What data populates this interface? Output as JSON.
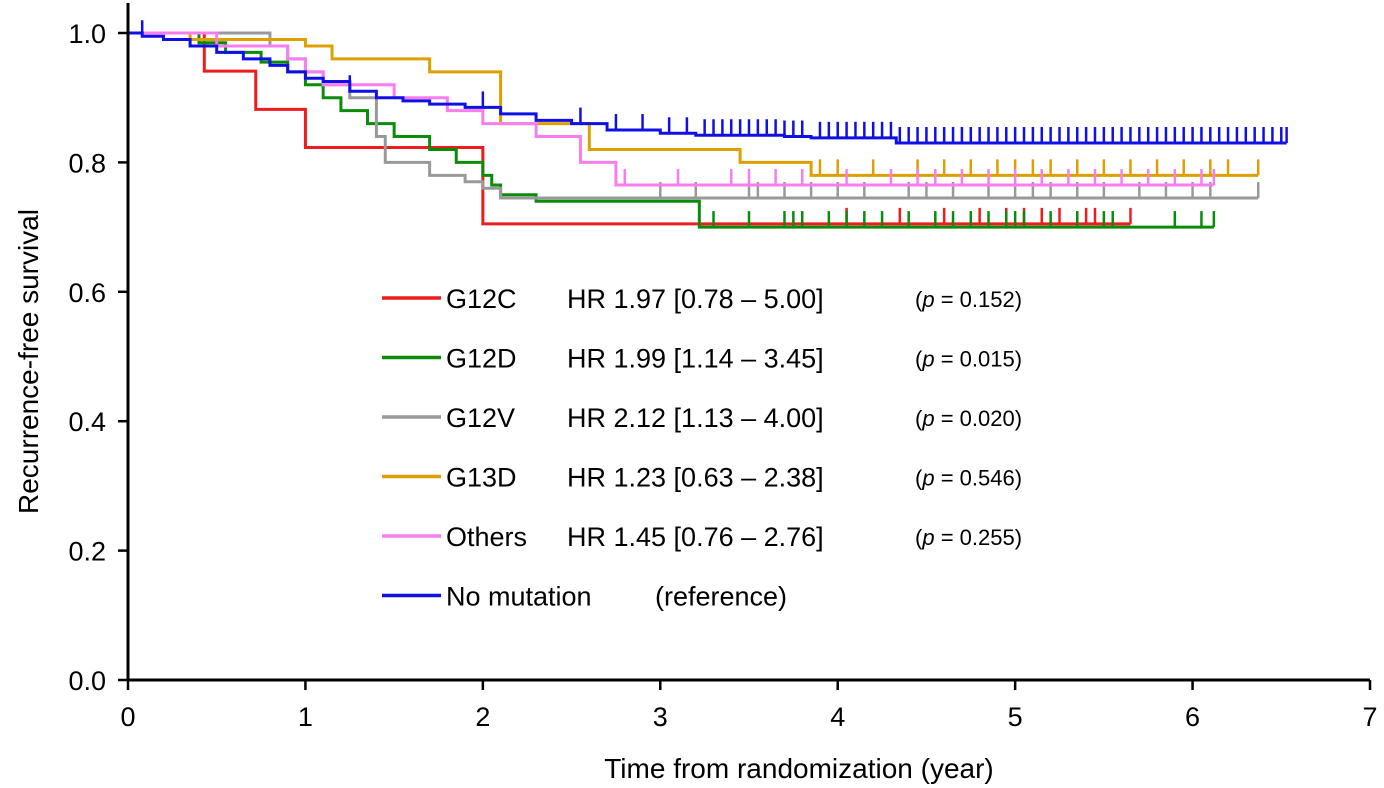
{
  "chart_data": {
    "type": "line",
    "step": true,
    "xlabel": "Time from randomization (year)",
    "ylabel": "Recurrence-free survival",
    "xlim": [
      0,
      7
    ],
    "ylim": [
      0.0,
      1.0
    ],
    "x_ticks": [
      "0",
      "1",
      "2",
      "3",
      "4",
      "5",
      "6",
      "7"
    ],
    "y_ticks": [
      "0.0",
      "0.2",
      "0.4",
      "0.6",
      "0.8",
      "1.0"
    ],
    "grid": false,
    "legend_position": "center",
    "series": [
      {
        "name": "G12C",
        "color": "#ee1c1c",
        "hr_text": "HR 1.97 [0.78 – 5.00]",
        "p_label": "p",
        "p_value": " = 0.152)",
        "x": [
          0,
          0.43,
          0.72,
          1.0,
          1.93,
          2.0,
          5.65
        ],
        "y": [
          1.0,
          0.941,
          0.882,
          0.823,
          0.823,
          0.705,
          0.705
        ],
        "censor_x": [
          4.05,
          4.35,
          4.6,
          4.8,
          4.95,
          5.05,
          5.15,
          5.25,
          5.4,
          5.45,
          5.65
        ]
      },
      {
        "name": "G12D",
        "color": "#0a8c0a",
        "hr_text": "HR 1.99 [1.14 – 3.45]",
        "p_label": "p",
        "p_value": " = 0.015)",
        "x": [
          0,
          0.4,
          0.55,
          0.75,
          0.9,
          1.0,
          1.1,
          1.2,
          1.35,
          1.5,
          1.7,
          1.85,
          2.0,
          2.05,
          2.1,
          2.3,
          3.22,
          6.12
        ],
        "y": [
          1.0,
          0.985,
          0.97,
          0.955,
          0.94,
          0.92,
          0.9,
          0.88,
          0.86,
          0.84,
          0.82,
          0.8,
          0.78,
          0.765,
          0.75,
          0.74,
          0.7,
          0.7
        ],
        "censor_x": [
          3.3,
          3.5,
          3.7,
          3.75,
          3.8,
          3.95,
          4.05,
          4.15,
          4.25,
          4.4,
          4.55,
          4.65,
          4.75,
          4.85,
          4.95,
          5.0,
          5.05,
          5.2,
          5.35,
          5.5,
          5.55,
          5.9,
          6.05,
          6.12
        ]
      },
      {
        "name": "G12V",
        "color": "#999999",
        "hr_text": "HR 2.12 [1.13 – 4.00]",
        "p_label": "p",
        "p_value": " = 0.020)",
        "x": [
          0,
          0.8,
          0.9,
          1.0,
          1.1,
          1.25,
          1.4,
          1.45,
          1.7,
          1.9,
          2.0,
          2.1,
          6.37
        ],
        "y": [
          1.0,
          0.98,
          0.96,
          0.94,
          0.92,
          0.9,
          0.84,
          0.8,
          0.78,
          0.77,
          0.76,
          0.745,
          0.745
        ],
        "censor_x": [
          3.0,
          3.2,
          3.5,
          3.55,
          3.7,
          3.85,
          4.0,
          4.15,
          4.4,
          4.5,
          4.65,
          4.85,
          5.0,
          5.1,
          5.2,
          5.35,
          5.5,
          5.7,
          5.85,
          6.0,
          6.1,
          6.37
        ]
      },
      {
        "name": "G13D",
        "color": "#dda000",
        "hr_text": "HR 1.23 [0.63 – 2.38]",
        "p_label": "p",
        "p_value": " = 0.546)",
        "x": [
          0,
          0.35,
          1.0,
          1.15,
          1.5,
          1.7,
          2.1,
          2.4,
          2.6,
          3.1,
          3.45,
          3.85,
          6.37
        ],
        "y": [
          1.0,
          0.99,
          0.98,
          0.96,
          0.96,
          0.94,
          0.86,
          0.86,
          0.82,
          0.82,
          0.8,
          0.78,
          0.78
        ],
        "censor_x": [
          3.9,
          4.0,
          4.2,
          4.45,
          4.6,
          4.75,
          4.9,
          5.0,
          5.1,
          5.2,
          5.35,
          5.5,
          5.65,
          5.8,
          5.95,
          6.1,
          6.2,
          6.37
        ]
      },
      {
        "name": "Others",
        "color": "#f87ef0",
        "hr_text": "HR 1.45 [0.76 – 2.76]",
        "p_label": "p",
        "p_value": " = 0.255)",
        "x": [
          0,
          0.5,
          0.9,
          1.0,
          1.1,
          1.5,
          1.8,
          2.0,
          2.3,
          2.55,
          2.75,
          6.12
        ],
        "y": [
          1.0,
          0.98,
          0.96,
          0.94,
          0.92,
          0.9,
          0.88,
          0.86,
          0.84,
          0.8,
          0.765,
          0.765
        ],
        "censor_x": [
          2.8,
          3.1,
          3.4,
          3.5,
          3.65,
          3.8,
          4.05,
          4.3,
          4.45,
          4.55,
          4.7,
          4.85,
          5.0,
          5.15,
          5.3,
          5.45,
          5.6,
          5.75,
          5.9,
          6.05,
          6.12
        ]
      },
      {
        "name": "No mutation",
        "color": "#1010e6",
        "hr_text": "(reference)",
        "p_label": "",
        "p_value": "",
        "x": [
          0,
          0.08,
          0.2,
          0.35,
          0.5,
          0.65,
          0.8,
          0.9,
          1.0,
          1.1,
          1.25,
          1.4,
          1.55,
          1.7,
          1.9,
          2.1,
          2.3,
          2.5,
          2.7,
          3.0,
          3.2,
          3.5,
          3.7,
          3.85,
          4.0,
          4.33,
          6.53
        ],
        "y": [
          1.0,
          0.995,
          0.99,
          0.98,
          0.97,
          0.96,
          0.95,
          0.94,
          0.93,
          0.925,
          0.91,
          0.9,
          0.895,
          0.89,
          0.885,
          0.875,
          0.865,
          0.86,
          0.85,
          0.845,
          0.842,
          0.842,
          0.84,
          0.838,
          0.838,
          0.83,
          0.83
        ],
        "censor_x": [
          0.08,
          1.25,
          2.0,
          2.55,
          2.75,
          2.9,
          3.05,
          3.15,
          3.25,
          3.3,
          3.35,
          3.4,
          3.45,
          3.5,
          3.55,
          3.6,
          3.65,
          3.7,
          3.75,
          3.8,
          3.9,
          3.95,
          4.0,
          4.05,
          4.1,
          4.15,
          4.2,
          4.25,
          4.3,
          4.35,
          4.4,
          4.45,
          4.5,
          4.55,
          4.6,
          4.65,
          4.7,
          4.75,
          4.8,
          4.85,
          4.9,
          4.95,
          5.0,
          5.05,
          5.1,
          5.15,
          5.2,
          5.25,
          5.3,
          5.35,
          5.4,
          5.45,
          5.5,
          5.55,
          5.6,
          5.65,
          5.7,
          5.75,
          5.8,
          5.85,
          5.9,
          5.95,
          6.0,
          6.05,
          6.1,
          6.15,
          6.2,
          6.25,
          6.3,
          6.35,
          6.4,
          6.45,
          6.5,
          6.53
        ]
      }
    ]
  }
}
